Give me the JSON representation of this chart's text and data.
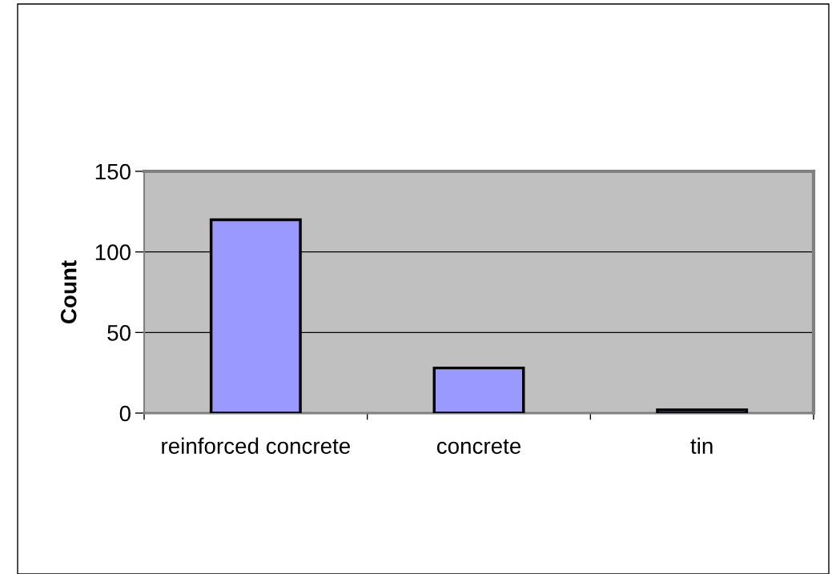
{
  "chart_data": {
    "type": "bar",
    "ylabel": "Count",
    "categories": [
      "reinforced concrete",
      "concrete",
      "tin"
    ],
    "values": [
      120,
      28,
      2
    ],
    "color": "#9999ff",
    "ylim": [
      0,
      150
    ],
    "yticks": [
      0,
      50,
      100,
      150
    ],
    "grid": "y"
  }
}
